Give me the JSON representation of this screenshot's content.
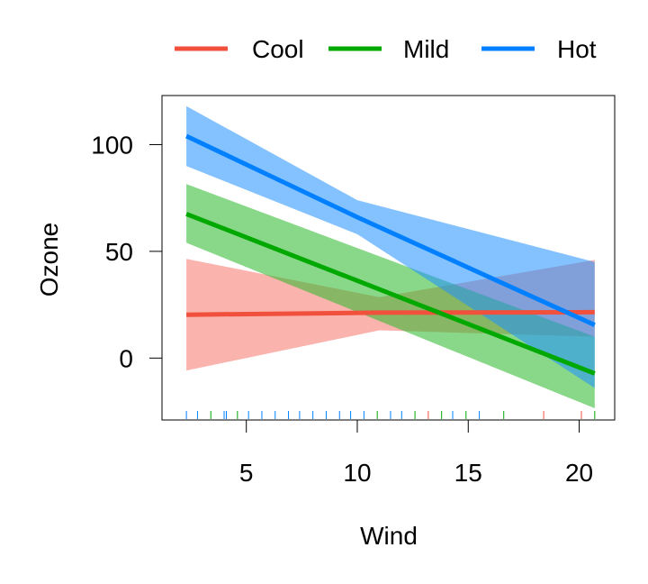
{
  "chart_data": {
    "type": "line",
    "title": "",
    "xlabel": "Wind",
    "ylabel": "Ozone",
    "xlim": [
      1.2,
      21.6
    ],
    "ylim": [
      -29,
      123
    ],
    "xticks": [
      5,
      10,
      15,
      20
    ],
    "yticks": [
      0,
      50,
      100
    ],
    "legend_position": "top",
    "series": [
      {
        "name": "Cool",
        "color": "#f0503c",
        "band_color": "#f8756b",
        "x": [
          2.3,
          11.0,
          20.7
        ],
        "values": [
          20.3,
          21.3,
          21.5
        ],
        "lower": [
          -5.8,
          13.0,
          10.0
        ],
        "upper": [
          46.5,
          28.5,
          46.0
        ]
      },
      {
        "name": "Mild",
        "color": "#00a800",
        "band_color": "#28b828",
        "x": [
          2.3,
          20.7
        ],
        "values": [
          67.5,
          -7.2
        ],
        "lower": [
          54.0,
          -23.5
        ],
        "upper": [
          81.5,
          10.0
        ]
      },
      {
        "name": "Hot",
        "color": "#0080ff",
        "band_color": "#1e90ff",
        "x": [
          2.3,
          10.0,
          20.7
        ],
        "values": [
          104.0,
          66.0,
          15.5
        ],
        "lower": [
          90.0,
          58.0,
          -14.0
        ],
        "upper": [
          118.0,
          74.0,
          45.0
        ]
      }
    ],
    "rug": [
      {
        "x": 2.3,
        "series": "Hot"
      },
      {
        "x": 2.8,
        "series": "Hot"
      },
      {
        "x": 3.4,
        "series": "Mild"
      },
      {
        "x": 4.0,
        "series": "Hot"
      },
      {
        "x": 4.1,
        "series": "Hot"
      },
      {
        "x": 4.6,
        "series": "Mild"
      },
      {
        "x": 5.1,
        "series": "Hot"
      },
      {
        "x": 5.7,
        "series": "Hot"
      },
      {
        "x": 6.3,
        "series": "Hot"
      },
      {
        "x": 6.9,
        "series": "Hot"
      },
      {
        "x": 7.4,
        "series": "Hot"
      },
      {
        "x": 8.0,
        "series": "Hot"
      },
      {
        "x": 8.6,
        "series": "Hot"
      },
      {
        "x": 9.2,
        "series": "Hot"
      },
      {
        "x": 9.7,
        "series": "Hot"
      },
      {
        "x": 10.3,
        "series": "Hot"
      },
      {
        "x": 10.9,
        "series": "Mild"
      },
      {
        "x": 11.5,
        "series": "Hot"
      },
      {
        "x": 12.0,
        "series": "Hot"
      },
      {
        "x": 12.6,
        "series": "Mild"
      },
      {
        "x": 13.2,
        "series": "Cool"
      },
      {
        "x": 13.8,
        "series": "Mild"
      },
      {
        "x": 14.3,
        "series": "Hot"
      },
      {
        "x": 14.9,
        "series": "Mild"
      },
      {
        "x": 15.5,
        "series": "Hot"
      },
      {
        "x": 16.6,
        "series": "Mild"
      },
      {
        "x": 18.4,
        "series": "Cool"
      },
      {
        "x": 20.1,
        "series": "Cool"
      },
      {
        "x": 20.7,
        "series": "Mild"
      }
    ]
  }
}
